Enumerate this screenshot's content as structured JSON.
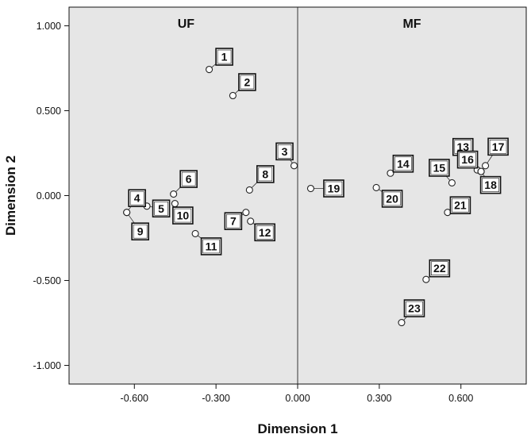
{
  "chart_data": {
    "type": "scatter",
    "xlabel": "Dimension 1",
    "ylabel": "Dimension 2",
    "xlim": [
      -0.84,
      0.84
    ],
    "ylim": [
      -1.11,
      1.11
    ],
    "xticks": [
      "-0.600",
      "-0.300",
      "0.000",
      "0.300",
      "0.600"
    ],
    "xtick_values": [
      -0.6,
      -0.3,
      0.0,
      0.3,
      0.6
    ],
    "yticks": [
      "1.000",
      "0.500",
      "0.000",
      "-0.500",
      "-1.000"
    ],
    "ytick_values": [
      1.0,
      0.5,
      0.0,
      -0.5,
      -1.0
    ],
    "regions": [
      {
        "label": "UF",
        "x": -0.41
      },
      {
        "label": "MF",
        "x": 0.42
      }
    ],
    "background_color": "#e6e6e6",
    "points": [
      {
        "label": "1",
        "x": -0.325,
        "y": 0.743
      },
      {
        "label": "2",
        "x": -0.238,
        "y": 0.589
      },
      {
        "label": "3",
        "x": -0.013,
        "y": 0.176
      },
      {
        "label": "4",
        "x": -0.628,
        "y": -0.099
      },
      {
        "label": "5",
        "x": -0.554,
        "y": -0.062
      },
      {
        "label": "6",
        "x": -0.456,
        "y": 0.009
      },
      {
        "label": "7",
        "x": -0.19,
        "y": -0.099
      },
      {
        "label": "8",
        "x": -0.177,
        "y": 0.033
      },
      {
        "label": "9",
        "x": -0.628,
        "y": -0.099
      },
      {
        "label": "10",
        "x": -0.451,
        "y": -0.047
      },
      {
        "label": "11",
        "x": -0.376,
        "y": -0.224
      },
      {
        "label": "12",
        "x": -0.173,
        "y": -0.151
      },
      {
        "label": "13",
        "x": 0.66,
        "y": 0.151
      },
      {
        "label": "14",
        "x": 0.341,
        "y": 0.132
      },
      {
        "label": "15",
        "x": 0.567,
        "y": 0.075
      },
      {
        "label": "16",
        "x": 0.674,
        "y": 0.142
      },
      {
        "label": "17",
        "x": 0.69,
        "y": 0.176
      },
      {
        "label": "18",
        "x": 0.674,
        "y": 0.142
      },
      {
        "label": "19",
        "x": 0.048,
        "y": 0.042
      },
      {
        "label": "20",
        "x": 0.289,
        "y": 0.047
      },
      {
        "label": "21",
        "x": 0.551,
        "y": -0.099
      },
      {
        "label": "22",
        "x": 0.472,
        "y": -0.494
      },
      {
        "label": "23",
        "x": 0.382,
        "y": -0.748
      }
    ]
  }
}
